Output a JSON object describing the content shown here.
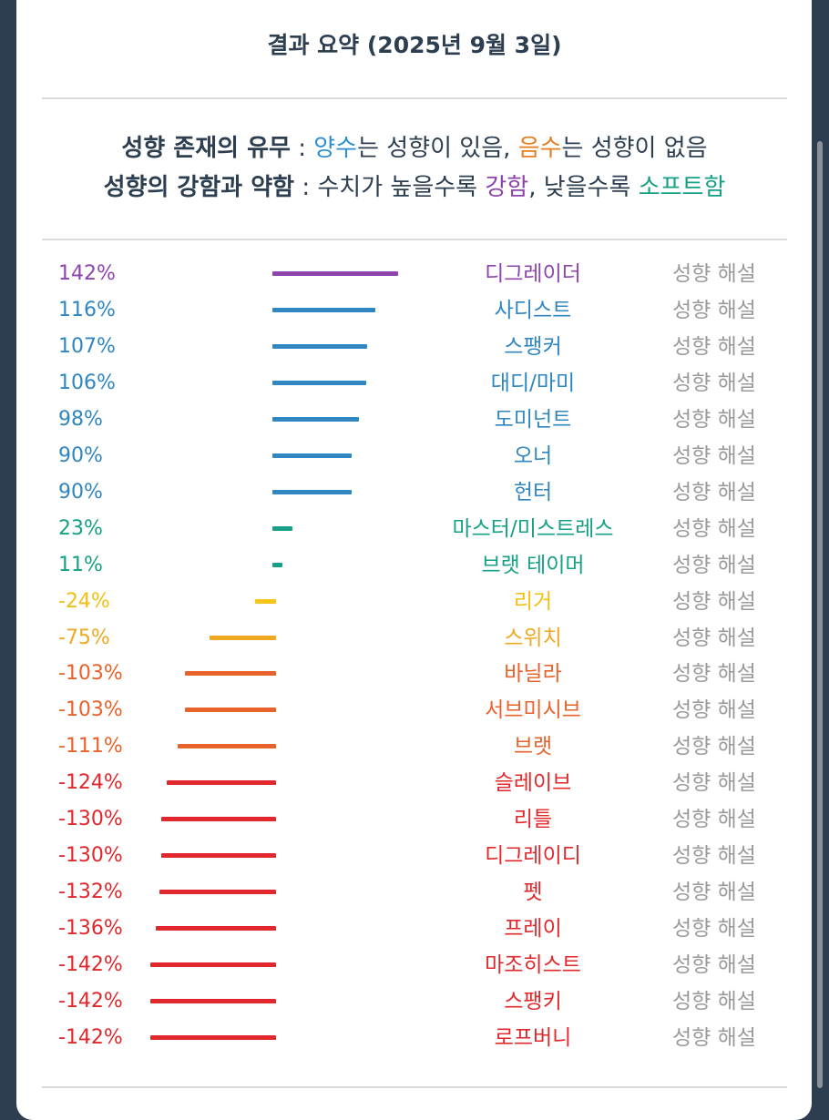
{
  "title": "결과 요약 (2025년 9월 3일)",
  "legend": {
    "line1": {
      "label": "성향 존재의 유무",
      "sep": " : ",
      "positive_word": "양수",
      "positive_rest": "는 성향이 있음, ",
      "negative_word": "음수",
      "negative_rest": "는 성향이 없음"
    },
    "line2": {
      "label": "성향의 강함과 약함",
      "sep": " : ",
      "text1": "수치가 높을수록 ",
      "strong_word": "강함",
      "text2": ", 낮을수록 ",
      "soft_word": "소프트함"
    }
  },
  "explain_label": "성향 해설",
  "colors": {
    "strong": "#8e44ad",
    "positive": "#2f86c0",
    "low_positive": "#16a085",
    "slight_negative": "#f5c518",
    "mild_negative": "#f0a820",
    "negative": "#e8622c",
    "strong_negative": "#e0282c"
  },
  "chart_data": {
    "type": "bar",
    "orientation": "horizontal-diverging",
    "unit": "%",
    "categories": [
      "디그레이더",
      "사디스트",
      "스팽커",
      "대디/마미",
      "도미넌트",
      "오너",
      "헌터",
      "마스터/미스트레스",
      "브랫 테이머",
      "리거",
      "스위치",
      "바닐라",
      "서브미시브",
      "브랫",
      "슬레이브",
      "리틀",
      "디그레이디",
      "펫",
      "프레이",
      "마조히스트",
      "스팽키",
      "로프버니"
    ],
    "values": [
      142,
      116,
      107,
      106,
      98,
      90,
      90,
      23,
      11,
      -24,
      -75,
      -103,
      -103,
      -111,
      -124,
      -130,
      -130,
      -132,
      -136,
      -142,
      -142,
      -142
    ],
    "labels": [
      "142%",
      "116%",
      "107%",
      "106%",
      "98%",
      "90%",
      "90%",
      "23%",
      "11%",
      "-24%",
      "-75%",
      "-103%",
      "-103%",
      "-111%",
      "-124%",
      "-130%",
      "-130%",
      "-132%",
      "-136%",
      "-142%",
      "-142%",
      "-142%"
    ],
    "color_groups": [
      "strong",
      "positive",
      "positive",
      "positive",
      "positive",
      "positive",
      "positive",
      "low_positive",
      "low_positive",
      "slight_negative",
      "mild_negative",
      "negative",
      "negative",
      "negative",
      "strong_negative",
      "strong_negative",
      "strong_negative",
      "strong_negative",
      "strong_negative",
      "strong_negative",
      "strong_negative",
      "strong_negative"
    ]
  }
}
